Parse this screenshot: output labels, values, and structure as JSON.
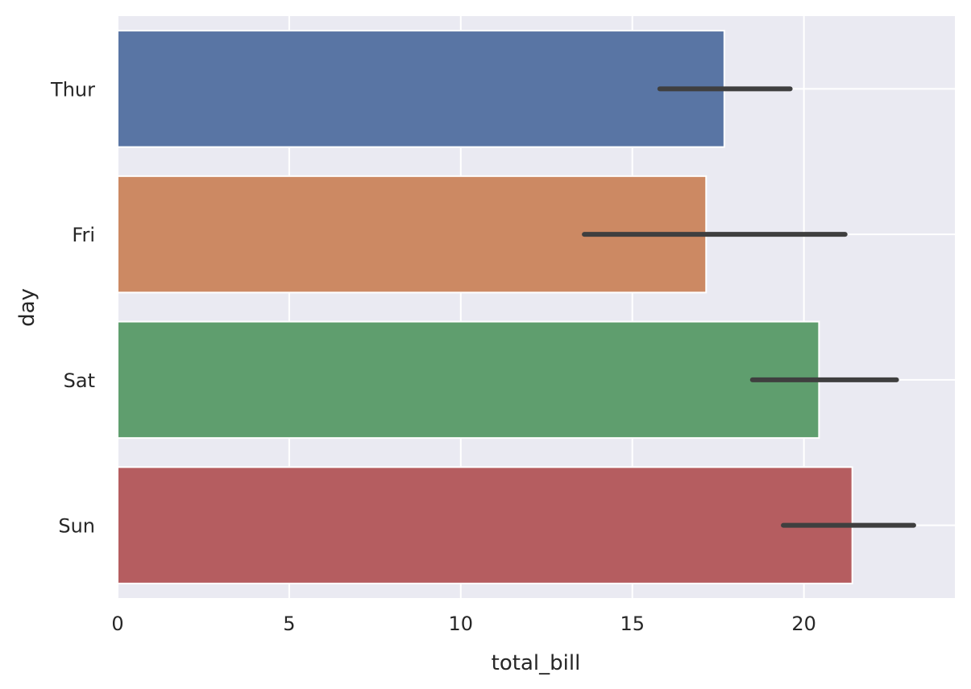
{
  "chart_data": {
    "type": "bar",
    "orientation": "horizontal",
    "title": "",
    "xlabel": "total_bill",
    "ylabel": "day",
    "categories": [
      "Thur",
      "Fri",
      "Sat",
      "Sun"
    ],
    "values": [
      17.68,
      17.15,
      20.44,
      21.41
    ],
    "error_bars": [
      [
        15.8,
        19.6
      ],
      [
        13.6,
        21.2
      ],
      [
        18.5,
        22.7
      ],
      [
        19.4,
        23.2
      ]
    ],
    "xlim": [
      0,
      24.4
    ],
    "xticks": [
      0,
      5,
      10,
      15,
      20
    ],
    "xtick_labels": [
      "0",
      "5",
      "10",
      "15",
      "20"
    ],
    "grid": true,
    "legend": "none",
    "colors": {
      "bars": [
        "#5975a4",
        "#cc8963",
        "#5f9e6e",
        "#b55d60"
      ],
      "error_bar": "#3f3f3f",
      "plot_background": "#eaeaf2",
      "grid": "#ffffff",
      "text": "#262626"
    }
  }
}
